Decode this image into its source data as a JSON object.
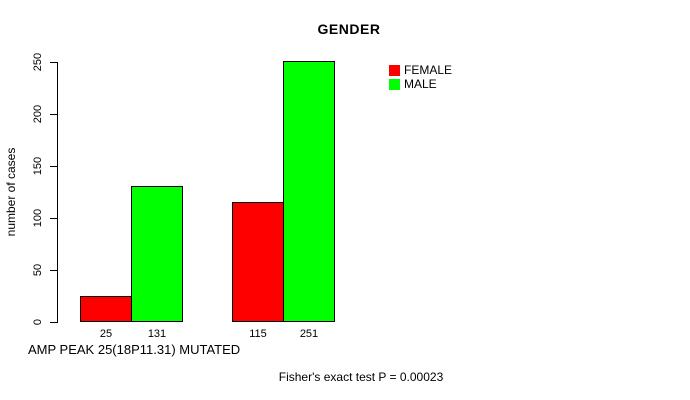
{
  "title": "GENDER",
  "colors": {
    "background": "#ffffff",
    "axis": "#000000",
    "text": "#000000",
    "female": "#ff0000",
    "male": "#00ff00"
  },
  "legend": {
    "items": [
      {
        "label": "FEMALE",
        "color": "#ff0000"
      },
      {
        "label": "MALE",
        "color": "#00ff00"
      }
    ]
  },
  "chart_data": {
    "type": "bar",
    "title": "GENDER",
    "xlabel": "",
    "ylabel": "number of cases",
    "ylim": [
      0,
      250
    ],
    "yticks": [
      0,
      50,
      100,
      150,
      200,
      250
    ],
    "grid": false,
    "legend_position": "top-right",
    "series": [
      {
        "name": "FEMALE",
        "color": "#ff0000",
        "values": [
          25,
          115
        ]
      },
      {
        "name": "MALE",
        "color": "#00ff00",
        "values": [
          131,
          251
        ]
      }
    ],
    "bar_value_labels": [
      "25",
      "131",
      "115",
      "251"
    ],
    "x_axis_note": "AMP PEAK 25(18P11.31) MUTATED",
    "annotation": "Fisher's exact test P = 0.00023"
  }
}
